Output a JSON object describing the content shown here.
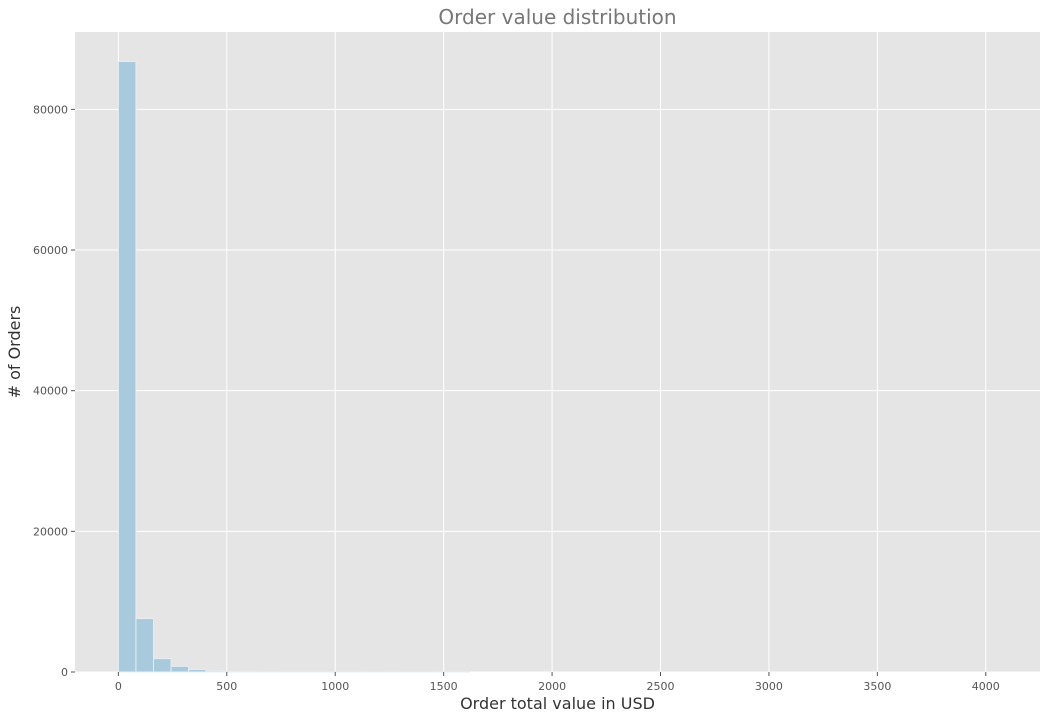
{
  "chart_data": {
    "type": "bar",
    "title": "Order value distribution",
    "xlabel": "Order total value in USD",
    "ylabel": "# of Orders",
    "xlim": [
      -200,
      4250
    ],
    "ylim": [
      0,
      91000
    ],
    "xticks": [
      0,
      500,
      1000,
      1500,
      2000,
      2500,
      3000,
      3500,
      4000
    ],
    "yticks": [
      0,
      20000,
      40000,
      60000,
      80000
    ],
    "grid": true,
    "bin_width": 81,
    "bins": [
      {
        "x0": 0,
        "x1": 81,
        "count": 86800
      },
      {
        "x0": 81,
        "x1": 162,
        "count": 7600
      },
      {
        "x0": 162,
        "x1": 243,
        "count": 1900
      },
      {
        "x0": 243,
        "x1": 324,
        "count": 800
      },
      {
        "x0": 324,
        "x1": 405,
        "count": 350
      },
      {
        "x0": 405,
        "x1": 486,
        "count": 160
      },
      {
        "x0": 486,
        "x1": 567,
        "count": 90
      },
      {
        "x0": 567,
        "x1": 648,
        "count": 55
      },
      {
        "x0": 648,
        "x1": 729,
        "count": 35
      },
      {
        "x0": 729,
        "x1": 810,
        "count": 25
      },
      {
        "x0": 810,
        "x1": 891,
        "count": 18
      },
      {
        "x0": 891,
        "x1": 972,
        "count": 12
      },
      {
        "x0": 972,
        "x1": 1053,
        "count": 10
      },
      {
        "x0": 1053,
        "x1": 1134,
        "count": 8
      },
      {
        "x0": 1134,
        "x1": 1215,
        "count": 7
      },
      {
        "x0": 1215,
        "x1": 1296,
        "count": 6
      },
      {
        "x0": 1296,
        "x1": 1377,
        "count": 5
      },
      {
        "x0": 1377,
        "x1": 1458,
        "count": 4
      },
      {
        "x0": 1458,
        "x1": 1539,
        "count": 3
      },
      {
        "x0": 1539,
        "x1": 1620,
        "count": 3
      }
    ],
    "colors": {
      "bar": "#a9c9dc",
      "bar_edge": "#e6edf2",
      "plot_bg": "#e5e5e5",
      "grid": "#ffffff"
    }
  }
}
